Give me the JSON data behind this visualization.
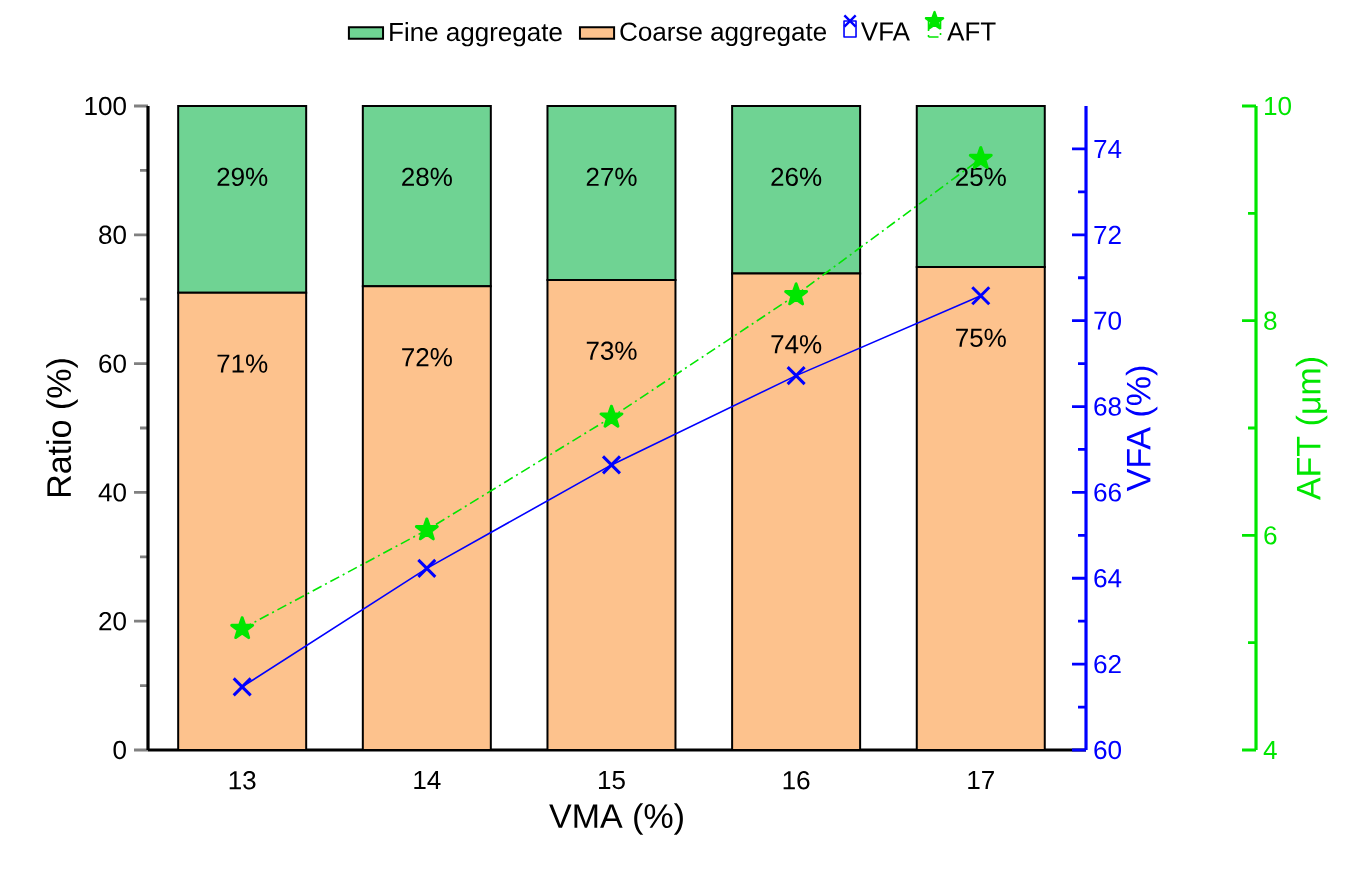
{
  "chart_data": {
    "type": "bar",
    "stacked": true,
    "xlabel": "VMA (%)",
    "ylabel": "Ratio (%)",
    "y2label": "VFA (%)",
    "y3label": "AFT (μm)",
    "categories": [
      "13",
      "14",
      "15",
      "16",
      "17"
    ],
    "ylim": [
      0,
      100
    ],
    "yticks": [
      0,
      20,
      40,
      60,
      80,
      100
    ],
    "y2lim": [
      60,
      75
    ],
    "y2ticks": [
      60,
      62,
      64,
      66,
      68,
      70,
      72,
      74
    ],
    "y3lim": [
      4,
      10
    ],
    "y3ticks": [
      4,
      6,
      8,
      10
    ],
    "legend": "top",
    "series": [
      {
        "name": "Coarse aggregate",
        "color": "#fdc28d",
        "values": [
          71,
          72,
          73,
          74,
          75
        ],
        "value_labels": [
          "71%",
          "72%",
          "73%",
          "74%",
          "75%"
        ]
      },
      {
        "name": "Fine aggregate",
        "color": "#6fd393",
        "values": [
          29,
          28,
          27,
          26,
          25
        ],
        "value_labels": [
          "29%",
          "28%",
          "27%",
          "26%",
          "25%"
        ]
      },
      {
        "name": "VFA",
        "type": "line",
        "axis": "y2",
        "color": "#0000ff",
        "marker": "cross",
        "line_style": "solid",
        "values": [
          61.47,
          64.23,
          66.64,
          68.72,
          70.58
        ]
      },
      {
        "name": "AFT",
        "type": "line",
        "axis": "y3",
        "color": "#00e600",
        "marker": "star",
        "line_style": "dashed",
        "values": [
          5.13,
          6.05,
          7.1,
          8.24,
          9.51
        ]
      }
    ]
  }
}
